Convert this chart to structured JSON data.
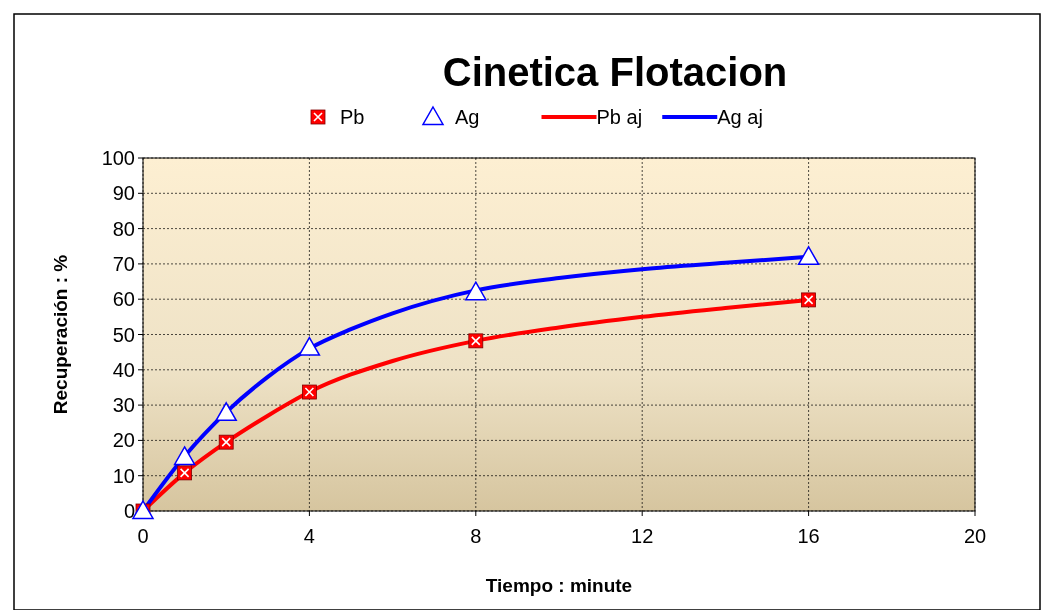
{
  "chart_data": {
    "type": "scatter",
    "title": "Cinetica Flotacion",
    "xlabel": "Tiempo : minute",
    "ylabel": "Recuperación : %",
    "xlim": [
      0,
      20
    ],
    "xticks": [
      0,
      4,
      8,
      12,
      16,
      20
    ],
    "ylim": [
      0,
      100
    ],
    "yticks": [
      0,
      10,
      20,
      30,
      40,
      50,
      60,
      70,
      80,
      90,
      100
    ],
    "grid": true,
    "legend": "top",
    "series": [
      {
        "name": "Pb",
        "marker": "square",
        "color": "#ff0000",
        "x": [
          0,
          1,
          2,
          4,
          8,
          16
        ],
        "values": [
          0,
          10.8,
          19.5,
          33.7,
          48.2,
          59.8
        ]
      },
      {
        "name": "Ag",
        "marker": "triangle",
        "color": "#0000ff",
        "x": [
          0,
          1,
          2,
          4,
          8,
          16
        ],
        "values": [
          0,
          15.3,
          27.8,
          46.3,
          62,
          72
        ]
      },
      {
        "name": "Pb aj",
        "type": "line",
        "marker": "none",
        "color": "#ff0000",
        "x": [
          0,
          1,
          2,
          3,
          4,
          6,
          8,
          10,
          12,
          14,
          16
        ],
        "values": [
          0,
          10.8,
          19.5,
          27,
          33.7,
          42.5,
          48.2,
          52,
          55,
          57.5,
          59.8
        ]
      },
      {
        "name": "Ag aj",
        "type": "line",
        "marker": "none",
        "color": "#0000ff",
        "x": [
          0,
          1,
          2,
          3,
          4,
          5,
          6,
          8,
          10,
          12,
          14,
          16
        ],
        "values": [
          0,
          15.5,
          28,
          38,
          46,
          51.5,
          56,
          62.5,
          66,
          68.5,
          70.3,
          72
        ]
      }
    ]
  }
}
